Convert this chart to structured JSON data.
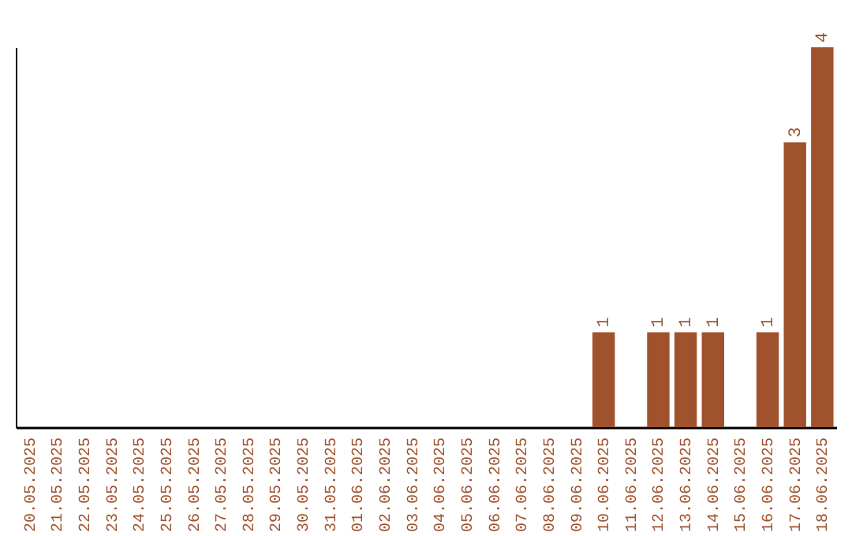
{
  "chart_data": {
    "type": "bar",
    "categories": [
      "20.05.2025",
      "21.05.2025",
      "22.05.2025",
      "23.05.2025",
      "24.05.2025",
      "25.05.2025",
      "26.05.2025",
      "27.05.2025",
      "28.05.2025",
      "29.05.2025",
      "30.05.2025",
      "31.05.2025",
      "01.06.2025",
      "02.06.2025",
      "03.06.2025",
      "04.06.2025",
      "05.06.2025",
      "06.06.2025",
      "07.06.2025",
      "08.06.2025",
      "09.06.2025",
      "10.06.2025",
      "11.06.2025",
      "12.06.2025",
      "13.06.2025",
      "14.06.2025",
      "15.06.2025",
      "16.06.2025",
      "17.06.2025",
      "18.06.2025"
    ],
    "values": [
      null,
      null,
      null,
      null,
      null,
      null,
      null,
      null,
      null,
      null,
      null,
      null,
      null,
      null,
      null,
      null,
      null,
      null,
      null,
      null,
      null,
      1,
      null,
      1,
      1,
      1,
      null,
      1,
      3,
      4
    ],
    "data_labels": true,
    "color": "#a0522d",
    "grid": false
  }
}
